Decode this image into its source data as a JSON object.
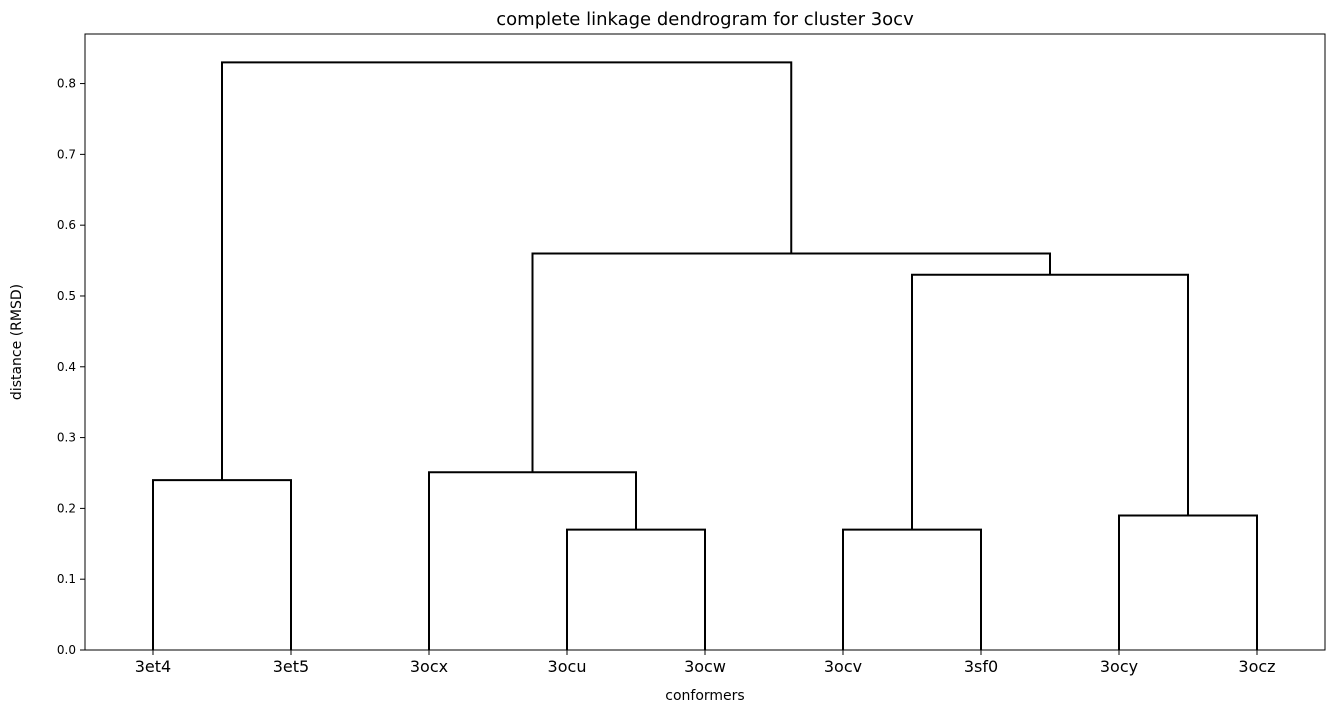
{
  "chart_data": {
    "type": "dendrogram",
    "title": "complete linkage dendrogram for cluster 3ocv",
    "xlabel": "conformers",
    "ylabel": "distance (RMSD)",
    "ylim": [
      0,
      0.87
    ],
    "yticks": [
      0.0,
      0.1,
      0.2,
      0.3,
      0.4,
      0.5,
      0.6,
      0.7,
      0.8
    ],
    "ytick_labels": [
      "0.0",
      "0.1",
      "0.2",
      "0.3",
      "0.4",
      "0.5",
      "0.6",
      "0.7",
      "0.8"
    ],
    "leaves": [
      "3et4",
      "3et5",
      "3ocx",
      "3ocu",
      "3ocw",
      "3ocv",
      "3sf0",
      "3ocy",
      "3ocz"
    ],
    "merges": [
      {
        "left": "3et4",
        "right": "3et5",
        "height": 0.24
      },
      {
        "left": "3ocu",
        "right": "3ocw",
        "height": 0.17
      },
      {
        "left": "3ocv",
        "right": "3sf0",
        "height": 0.17
      },
      {
        "left": "3ocy",
        "right": "3ocz",
        "height": 0.19
      },
      {
        "left": "3ocx",
        "right": "3ocu+3ocw",
        "height": 0.251
      },
      {
        "left": "3ocv+3sf0",
        "right": "3ocy+3ocz",
        "height": 0.53
      },
      {
        "left": "3ocx+3ocu+3ocw",
        "right": "3ocv+3sf0+3ocy+3ocz",
        "height": 0.56
      },
      {
        "left": "3et4+3et5",
        "right": "rest",
        "height": 0.83
      }
    ],
    "line_color": "#000000",
    "grid": false
  }
}
